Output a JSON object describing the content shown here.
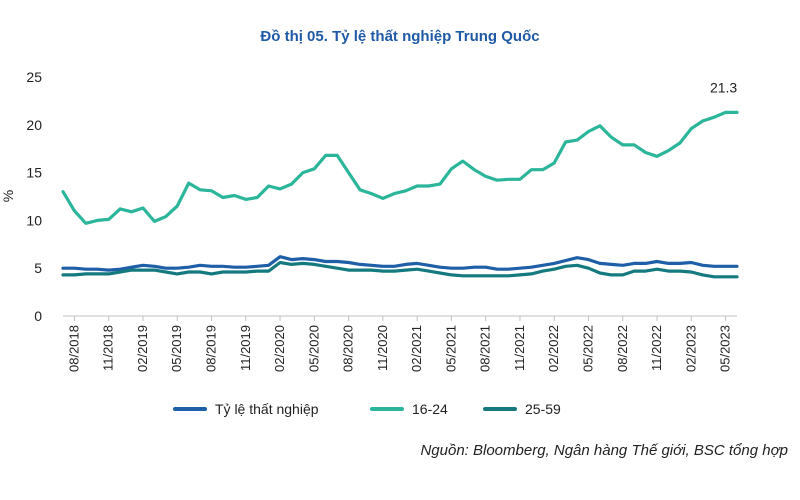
{
  "chart_data": {
    "type": "line",
    "title": "Đồ thị 05. Tỷ lệ thất nghiệp Trung Quốc",
    "ylabel": "%",
    "xlabel": "",
    "ylim": [
      0,
      25
    ],
    "yticks": [
      0,
      5,
      10,
      15,
      20,
      25
    ],
    "x": [
      "07/2018",
      "08/2018",
      "09/2018",
      "10/2018",
      "11/2018",
      "12/2018",
      "01/2019",
      "02/2019",
      "03/2019",
      "04/2019",
      "05/2019",
      "06/2019",
      "07/2019",
      "08/2019",
      "09/2019",
      "10/2019",
      "11/2019",
      "12/2019",
      "01/2020",
      "02/2020",
      "03/2020",
      "04/2020",
      "05/2020",
      "06/2020",
      "07/2020",
      "08/2020",
      "09/2020",
      "10/2020",
      "11/2020",
      "12/2020",
      "01/2021",
      "02/2021",
      "03/2021",
      "04/2021",
      "05/2021",
      "06/2021",
      "07/2021",
      "08/2021",
      "09/2021",
      "10/2021",
      "11/2021",
      "12/2021",
      "01/2022",
      "02/2022",
      "03/2022",
      "04/2022",
      "05/2022",
      "06/2022",
      "07/2022",
      "08/2022",
      "09/2022",
      "10/2022",
      "11/2022",
      "12/2022",
      "01/2023",
      "02/2023",
      "03/2023",
      "04/2023",
      "05/2023",
      "06/2023"
    ],
    "xtick_labels": [
      "08/2018",
      "11/2018",
      "02/2019",
      "05/2019",
      "08/2019",
      "11/2019",
      "02/2020",
      "05/2020",
      "08/2020",
      "11/2020",
      "02/2021",
      "05/2021",
      "08/2021",
      "11/2021",
      "02/2022",
      "05/2022",
      "08/2022",
      "11/2022",
      "02/2023",
      "05/2023"
    ],
    "series": [
      {
        "name": "Tỷ lệ thất nghiệp",
        "color": "#1f5fa8",
        "values": [
          5.0,
          5.0,
          4.9,
          4.9,
          4.8,
          4.9,
          5.1,
          5.3,
          5.2,
          5.0,
          5.0,
          5.1,
          5.3,
          5.2,
          5.2,
          5.1,
          5.1,
          5.2,
          5.3,
          6.2,
          5.9,
          6.0,
          5.9,
          5.7,
          5.7,
          5.6,
          5.4,
          5.3,
          5.2,
          5.2,
          5.4,
          5.5,
          5.3,
          5.1,
          5.0,
          5.0,
          5.1,
          5.1,
          4.9,
          4.9,
          5.0,
          5.1,
          5.3,
          5.5,
          5.8,
          6.1,
          5.9,
          5.5,
          5.4,
          5.3,
          5.5,
          5.5,
          5.7,
          5.5,
          5.5,
          5.6,
          5.3,
          5.2,
          5.2,
          5.2
        ]
      },
      {
        "name": "16-24",
        "color": "#2bb59a",
        "values": [
          13.0,
          11.0,
          9.7,
          10.0,
          10.1,
          11.2,
          10.9,
          11.3,
          9.9,
          10.4,
          11.5,
          13.9,
          13.2,
          13.1,
          12.4,
          12.6,
          12.2,
          12.4,
          13.6,
          13.3,
          13.8,
          15.0,
          15.4,
          16.8,
          16.8,
          15.0,
          13.2,
          12.8,
          12.3,
          12.8,
          13.1,
          13.6,
          13.6,
          13.8,
          15.4,
          16.2,
          15.3,
          14.6,
          14.2,
          14.3,
          14.3,
          15.3,
          15.3,
          16.0,
          18.2,
          18.4,
          19.3,
          19.9,
          18.7,
          17.9,
          17.9,
          17.1,
          16.7,
          17.3,
          18.1,
          19.6,
          20.4,
          20.8,
          21.3,
          21.3
        ]
      },
      {
        "name": "25-59",
        "color": "#157a80",
        "values": [
          4.3,
          4.3,
          4.4,
          4.4,
          4.4,
          4.6,
          4.8,
          4.8,
          4.8,
          4.6,
          4.4,
          4.6,
          4.6,
          4.4,
          4.6,
          4.6,
          4.6,
          4.7,
          4.7,
          5.6,
          5.4,
          5.5,
          5.4,
          5.2,
          5.0,
          4.8,
          4.8,
          4.8,
          4.7,
          4.7,
          4.8,
          4.9,
          4.7,
          4.5,
          4.3,
          4.2,
          4.2,
          4.2,
          4.2,
          4.2,
          4.3,
          4.4,
          4.7,
          4.9,
          5.2,
          5.3,
          5.0,
          4.5,
          4.3,
          4.3,
          4.7,
          4.7,
          4.9,
          4.7,
          4.7,
          4.6,
          4.3,
          4.1,
          4.1,
          4.1
        ]
      }
    ],
    "annotations": [
      {
        "text": "21.3",
        "series": "16-24",
        "index": 58
      }
    ],
    "grid": false,
    "legend_position": "bottom-left",
    "source": "Nguồn: Bloomberg, Ngân hàng Thế giới, BSC tổng hợp"
  }
}
